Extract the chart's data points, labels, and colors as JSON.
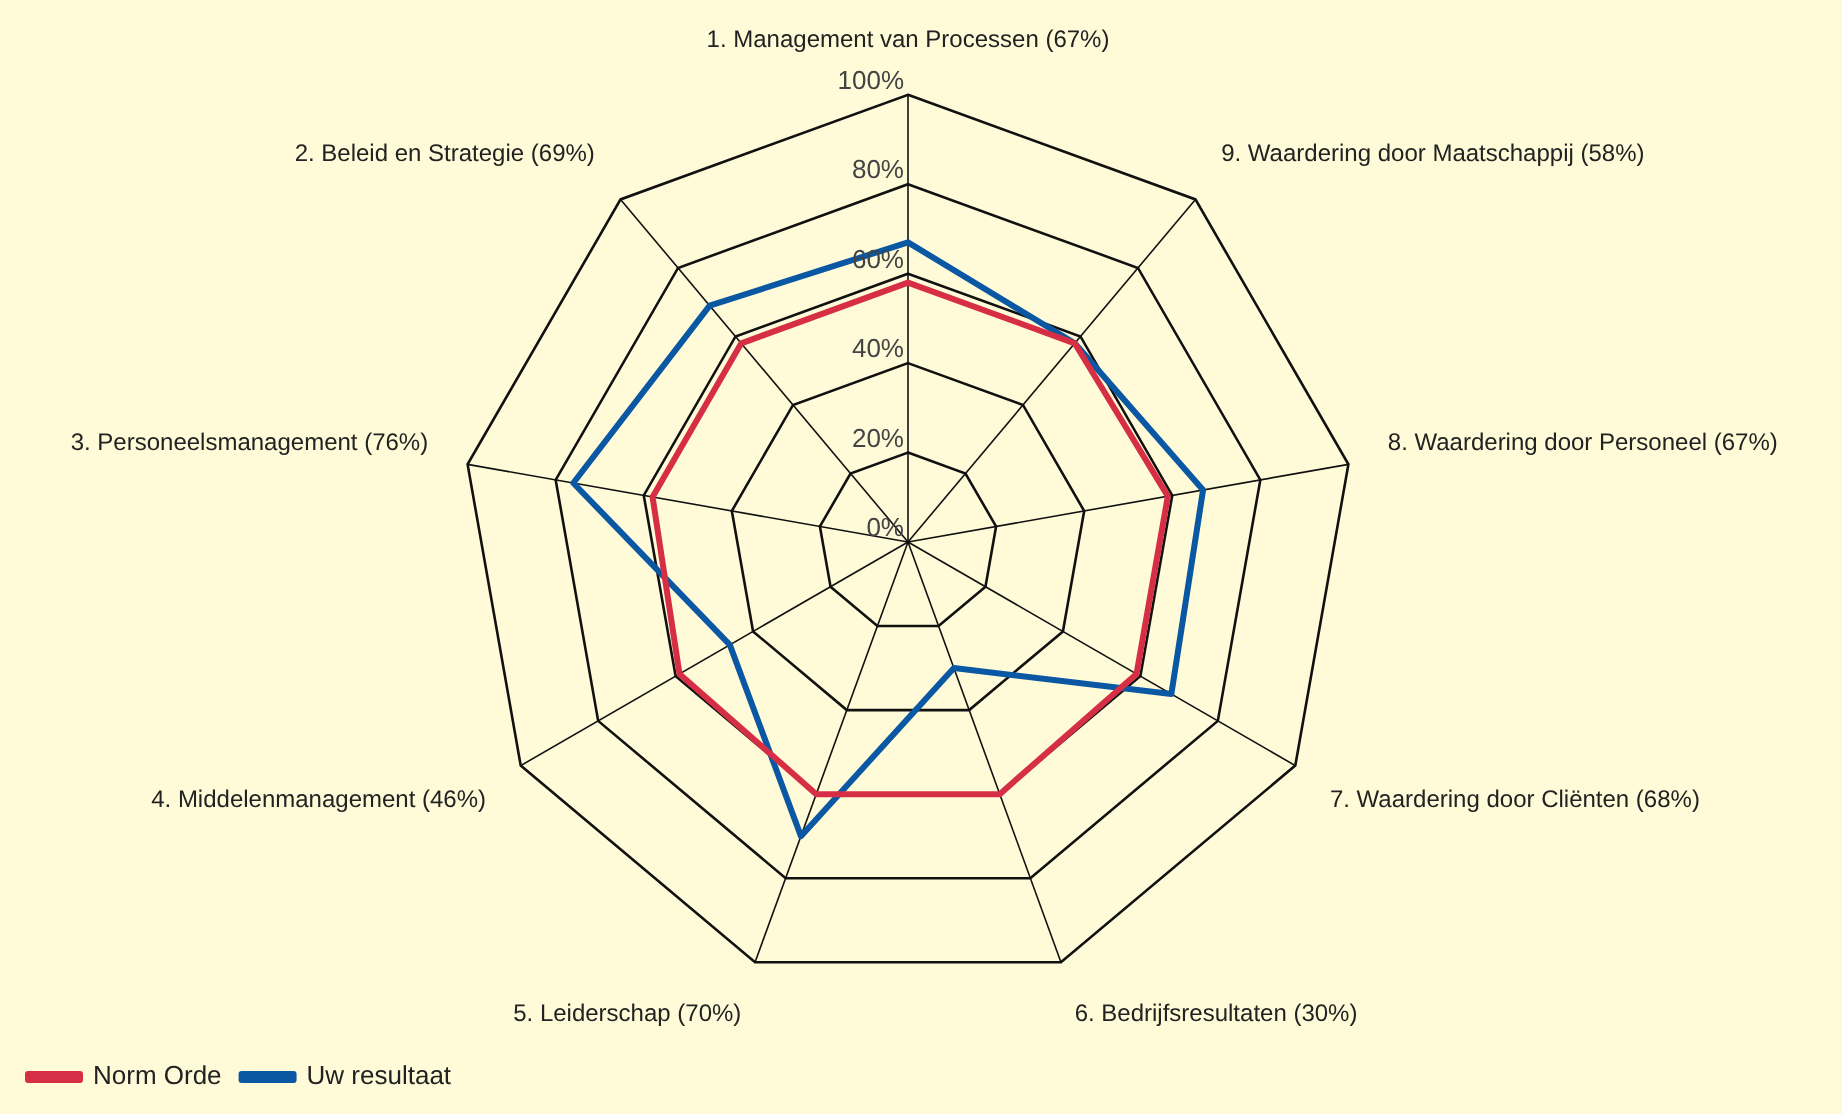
{
  "chart_data": {
    "type": "radar",
    "categories": [
      "1. Management van Processen (67%)",
      "9. Waardering door Maatschappij (58%)",
      "8. Waardering door Personeel (67%)",
      "7. Waardering door Cliënten (68%)",
      "6. Bedrijfsresultaten (30%)",
      "5. Leiderschap (70%)",
      "4. Middelenmanagement (46%)",
      "3. Personeelsmanagement (76%)",
      "2. Beleid en Strategie (69%)"
    ],
    "series": [
      {
        "name": "Norm Orde",
        "color": "#d62f45",
        "values": [
          58,
          58,
          59,
          59,
          60,
          60,
          59,
          58,
          58
        ]
      },
      {
        "name": "Uw resultaat",
        "color": "#0a57a4",
        "values": [
          67,
          58,
          67,
          68,
          30,
          70,
          46,
          76,
          69
        ]
      }
    ],
    "ylim": [
      0,
      100
    ],
    "yticks": [
      {
        "value": 0,
        "label": "0%"
      },
      {
        "value": 20,
        "label": "20%"
      },
      {
        "value": 40,
        "label": "40%"
      },
      {
        "value": 60,
        "label": "60%"
      },
      {
        "value": 80,
        "label": "80%"
      },
      {
        "value": 100,
        "label": "100%"
      }
    ],
    "grid": true,
    "legend": "bottom left",
    "marker": "none",
    "line_style": "solid"
  }
}
